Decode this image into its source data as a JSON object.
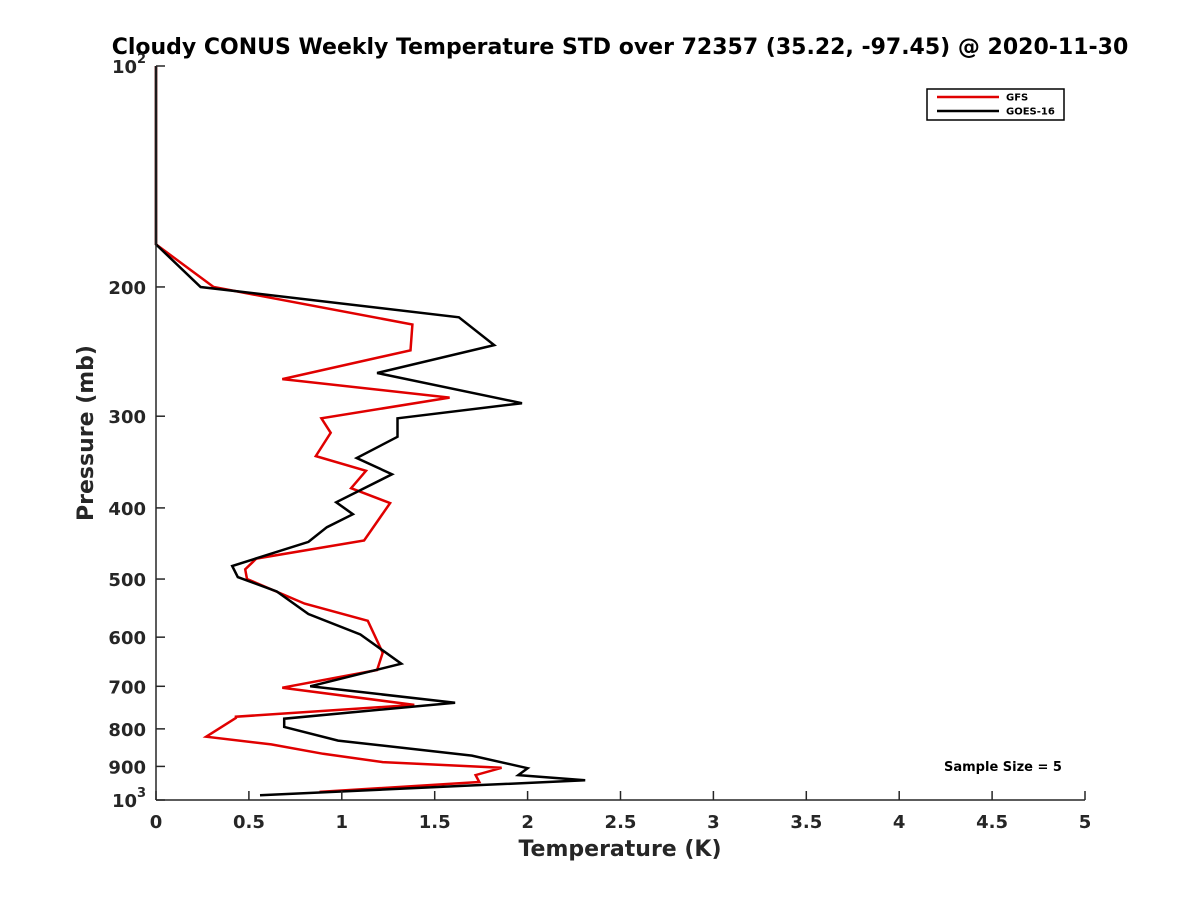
{
  "chart_data": {
    "type": "line",
    "title": "Cloudy CONUS Weekly Temperature STD over 72357 (35.22, -97.45) @ 2020-11-30",
    "xlabel": "Temperature (K)",
    "ylabel": "Pressure (mb)",
    "xlim": [
      0,
      5
    ],
    "ylim": [
      100,
      1000
    ],
    "y_scale": "log",
    "y_reversed": true,
    "x_ticks": [
      {
        "v": 0,
        "label": "0"
      },
      {
        "v": 0.5,
        "label": "0.5"
      },
      {
        "v": 1,
        "label": "1"
      },
      {
        "v": 1.5,
        "label": "1.5"
      },
      {
        "v": 2,
        "label": "2"
      },
      {
        "v": 2.5,
        "label": "2.5"
      },
      {
        "v": 3,
        "label": "3"
      },
      {
        "v": 3.5,
        "label": "3.5"
      },
      {
        "v": 4,
        "label": "4"
      },
      {
        "v": 4.5,
        "label": "4.5"
      },
      {
        "v": 5,
        "label": "5"
      }
    ],
    "y_ticks": [
      {
        "v": 100,
        "label": "10",
        "exp": "2"
      },
      {
        "v": 200,
        "label": "200"
      },
      {
        "v": 300,
        "label": "300"
      },
      {
        "v": 400,
        "label": "400"
      },
      {
        "v": 500,
        "label": "500"
      },
      {
        "v": 600,
        "label": "600"
      },
      {
        "v": 700,
        "label": "700"
      },
      {
        "v": 800,
        "label": "800"
      },
      {
        "v": 900,
        "label": "900"
      },
      {
        "v": 1000,
        "label": "10",
        "exp": "3"
      }
    ],
    "legend_position": "top-right",
    "series": [
      {
        "name": "GFS",
        "color": "#e00000",
        "points": [
          [
            0,
            100
          ],
          [
            0,
            175
          ],
          [
            0.31,
            200
          ],
          [
            1.38,
            225
          ],
          [
            1.37,
            244
          ],
          [
            0.68,
            267
          ],
          [
            1.58,
            283
          ],
          [
            0.89,
            302
          ],
          [
            0.94,
            316
          ],
          [
            0.86,
            340
          ],
          [
            1.13,
            356
          ],
          [
            1.05,
            376
          ],
          [
            1.26,
            394
          ],
          [
            1.12,
            443
          ],
          [
            0.54,
            469
          ],
          [
            0.48,
            485
          ],
          [
            0.49,
            500
          ],
          [
            0.8,
            540
          ],
          [
            1.14,
            570
          ],
          [
            1.22,
            630
          ],
          [
            1.19,
            665
          ],
          [
            0.68,
            703
          ],
          [
            1.39,
            742
          ],
          [
            0.43,
            770
          ],
          [
            0.43,
            773
          ],
          [
            0.27,
            820
          ],
          [
            0.62,
            840
          ],
          [
            0.9,
            865
          ],
          [
            1.22,
            888
          ],
          [
            1.86,
            904
          ],
          [
            1.72,
            925
          ],
          [
            1.74,
            945
          ],
          [
            0.88,
            975
          ]
        ]
      },
      {
        "name": "GOES-16",
        "color": "#000000",
        "points": [
          [
            0,
            100
          ],
          [
            0,
            175
          ],
          [
            0.24,
            200
          ],
          [
            1.63,
            220
          ],
          [
            1.82,
            240
          ],
          [
            1.19,
            262
          ],
          [
            1.97,
            288
          ],
          [
            1.3,
            302
          ],
          [
            1.3,
            320
          ],
          [
            1.08,
            342
          ],
          [
            1.27,
            360
          ],
          [
            0.97,
            393
          ],
          [
            1.06,
            408
          ],
          [
            0.92,
            425
          ],
          [
            0.82,
            445
          ],
          [
            0.41,
            480
          ],
          [
            0.44,
            497
          ],
          [
            0.65,
            520
          ],
          [
            0.82,
            558
          ],
          [
            1.1,
            595
          ],
          [
            1.32,
            652
          ],
          [
            0.83,
            700
          ],
          [
            1.61,
            737
          ],
          [
            0.69,
            775
          ],
          [
            0.69,
            795
          ],
          [
            0.98,
            830
          ],
          [
            1.7,
            870
          ],
          [
            2.0,
            905
          ],
          [
            1.95,
            925
          ],
          [
            2.31,
            940
          ],
          [
            1.72,
            955
          ],
          [
            0.56,
            985
          ]
        ]
      }
    ],
    "annotation": "Sample Size = 5"
  }
}
